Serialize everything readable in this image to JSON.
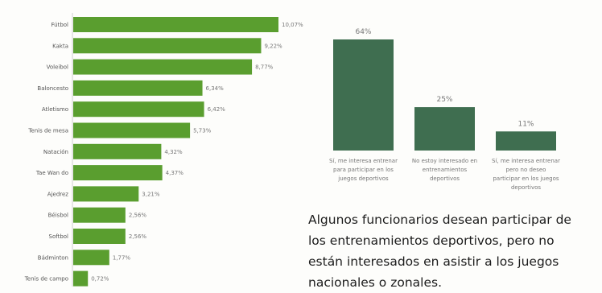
{
  "chart_data": [
    {
      "type": "bar",
      "orientation": "horizontal",
      "categories": [
        "Fútbol",
        "Kakta",
        "Voleibol",
        "Baloncesto",
        "Atletismo",
        "Tenis de mesa",
        "Natación",
        "Tae Wan do",
        "Ajedrez",
        "Béisbol",
        "Softbol",
        "Bádminton",
        "Tenis de campo"
      ],
      "values": [
        10.07,
        9.22,
        8.77,
        6.34,
        6.42,
        5.73,
        4.32,
        4.37,
        3.21,
        2.56,
        2.56,
        1.77,
        0.72
      ],
      "value_labels": [
        "10,07%",
        "9,22%",
        "8,77%",
        "6,34%",
        "6,42%",
        "5,73%",
        "4,32%",
        "4,37%",
        "3,21%",
        "2,56%",
        "2,56%",
        "1,77%",
        "0,72%"
      ],
      "xlim": [
        0,
        11
      ],
      "colors": {
        "bar": "#5a9e2f"
      }
    },
    {
      "type": "bar",
      "categories": [
        "Sí, me interesa entrenar para participar en los juegos deportivos",
        "No estoy interesado en entrenamientos deportivos",
        "Sí, me interesa entrenar pero no deseo participar en los juegos deportivos"
      ],
      "values": [
        64,
        25,
        11
      ],
      "value_labels": [
        "64%",
        "25%",
        "11%"
      ],
      "ylim": [
        0,
        70
      ],
      "colors": {
        "bar": "#3f6e50"
      }
    }
  ],
  "note": "Algunos funcionarios desean participar de los entrenamientos deportivos, pero no están interesados en asistir a los juegos nacionales o zonales."
}
